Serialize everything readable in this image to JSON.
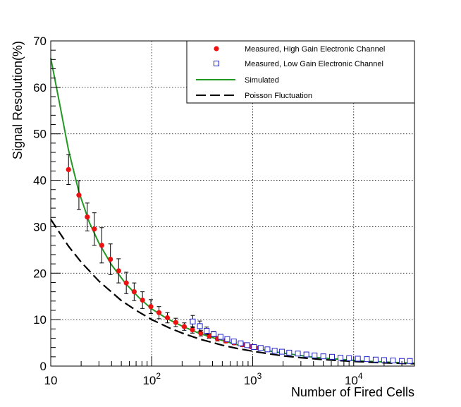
{
  "chart_data": {
    "type": "scatter",
    "title": "",
    "xlabel": "Number of Fired Cells",
    "ylabel": "Signal Resolution(%)",
    "xscale": "log",
    "xlim": [
      10,
      40000
    ],
    "ylim": [
      0,
      70
    ],
    "grid": true,
    "legend_position": "top-right",
    "x_tick_labels": [
      {
        "value": 10,
        "base": "10",
        "exp": ""
      },
      {
        "value": 100,
        "base": "10",
        "exp": "2"
      },
      {
        "value": 1000,
        "base": "10",
        "exp": "3"
      },
      {
        "value": 10000,
        "base": "10",
        "exp": "4"
      }
    ],
    "y_ticks": [
      0,
      10,
      20,
      30,
      40,
      50,
      60,
      70
    ],
    "series": [
      {
        "name": "Measured, High Gain Electronic Channel",
        "kind": "points",
        "marker": "circle",
        "color": "#ee1111",
        "x": [
          15,
          19,
          23,
          27,
          32,
          39,
          47,
          56,
          67,
          81,
          98,
          118,
          143,
          173,
          210,
          253,
          306,
          370,
          447,
          540,
          653,
          790,
          955,
          1150
        ],
        "y": [
          42.3,
          36.8,
          32.1,
          29.5,
          26.0,
          23.0,
          20.5,
          17.9,
          16.0,
          14.2,
          12.8,
          11.5,
          10.4,
          9.4,
          8.5,
          7.8,
          7.1,
          6.5,
          5.9,
          5.4,
          5.0,
          4.6,
          4.2,
          3.9
        ],
        "err": [
          3.2,
          3.1,
          3.0,
          3.5,
          3.8,
          3.3,
          2.6,
          2.3,
          1.9,
          1.8,
          1.5,
          1.3,
          1.1,
          0.9,
          0.8,
          0.7,
          0.6,
          0.5,
          0.5,
          0.4,
          0.4,
          0.4,
          0.3,
          0.3
        ]
      },
      {
        "name": "Measured, Low Gain Electronic Channel",
        "kind": "points",
        "marker": "open-square",
        "color": "#2222cc",
        "x": [
          255,
          300,
          350,
          410,
          480,
          560,
          650,
          760,
          880,
          1030,
          1200,
          1400,
          1650,
          1950,
          2300,
          2800,
          3400,
          4100,
          5000,
          6100,
          7400,
          9000,
          11000,
          13500,
          16500,
          20000,
          24500,
          30000,
          36000
        ],
        "y": [
          9.6,
          8.6,
          7.6,
          6.9,
          6.3,
          5.8,
          5.3,
          4.9,
          4.5,
          4.1,
          3.9,
          3.6,
          3.3,
          3.1,
          2.9,
          2.7,
          2.5,
          2.3,
          2.1,
          2.0,
          1.8,
          1.7,
          1.6,
          1.5,
          1.4,
          1.3,
          1.2,
          1.1,
          1.1
        ],
        "err": [
          1.3,
          1.1,
          0.8,
          0.6,
          0.5,
          0.4,
          0.4,
          0.3,
          0.3,
          0.3,
          0.3,
          0.2,
          0.2,
          0.2,
          0.2,
          0.2,
          0.2,
          0.2,
          0.2,
          0.2,
          0.2,
          0.2,
          0.2,
          0.2,
          0.2,
          0.2,
          0.2,
          0.2,
          0.2
        ]
      },
      {
        "name": "Simulated",
        "kind": "line",
        "style": "solid",
        "color": "#229922",
        "x": [
          10,
          12,
          15,
          19,
          24,
          30,
          40,
          55,
          75,
          100,
          140,
          200,
          300,
          450,
          700,
          1000,
          1500,
          2500,
          4000,
          7000,
          12000,
          20000,
          40000
        ],
        "y": [
          66.3,
          57.5,
          46.5,
          37.5,
          31.0,
          26.5,
          21.8,
          17.8,
          14.7,
          12.3,
          10.3,
          8.6,
          7.0,
          5.8,
          4.6,
          3.9,
          3.2,
          2.5,
          1.9,
          1.5,
          1.1,
          0.9,
          0.6
        ]
      },
      {
        "name": "Poisson Fluctuation",
        "kind": "line",
        "style": "dashed",
        "color": "#000000",
        "x": [
          10,
          15,
          20,
          30,
          50,
          70,
          100,
          150,
          200,
          300,
          500,
          700,
          1000,
          1500,
          2000,
          3000,
          5000,
          10000,
          20000,
          40000
        ],
        "y": [
          31.6,
          25.8,
          22.4,
          18.3,
          14.1,
          12.0,
          10.0,
          8.2,
          7.1,
          5.8,
          4.5,
          3.8,
          3.2,
          2.6,
          2.2,
          1.8,
          1.4,
          1.0,
          0.7,
          0.5
        ]
      }
    ]
  }
}
